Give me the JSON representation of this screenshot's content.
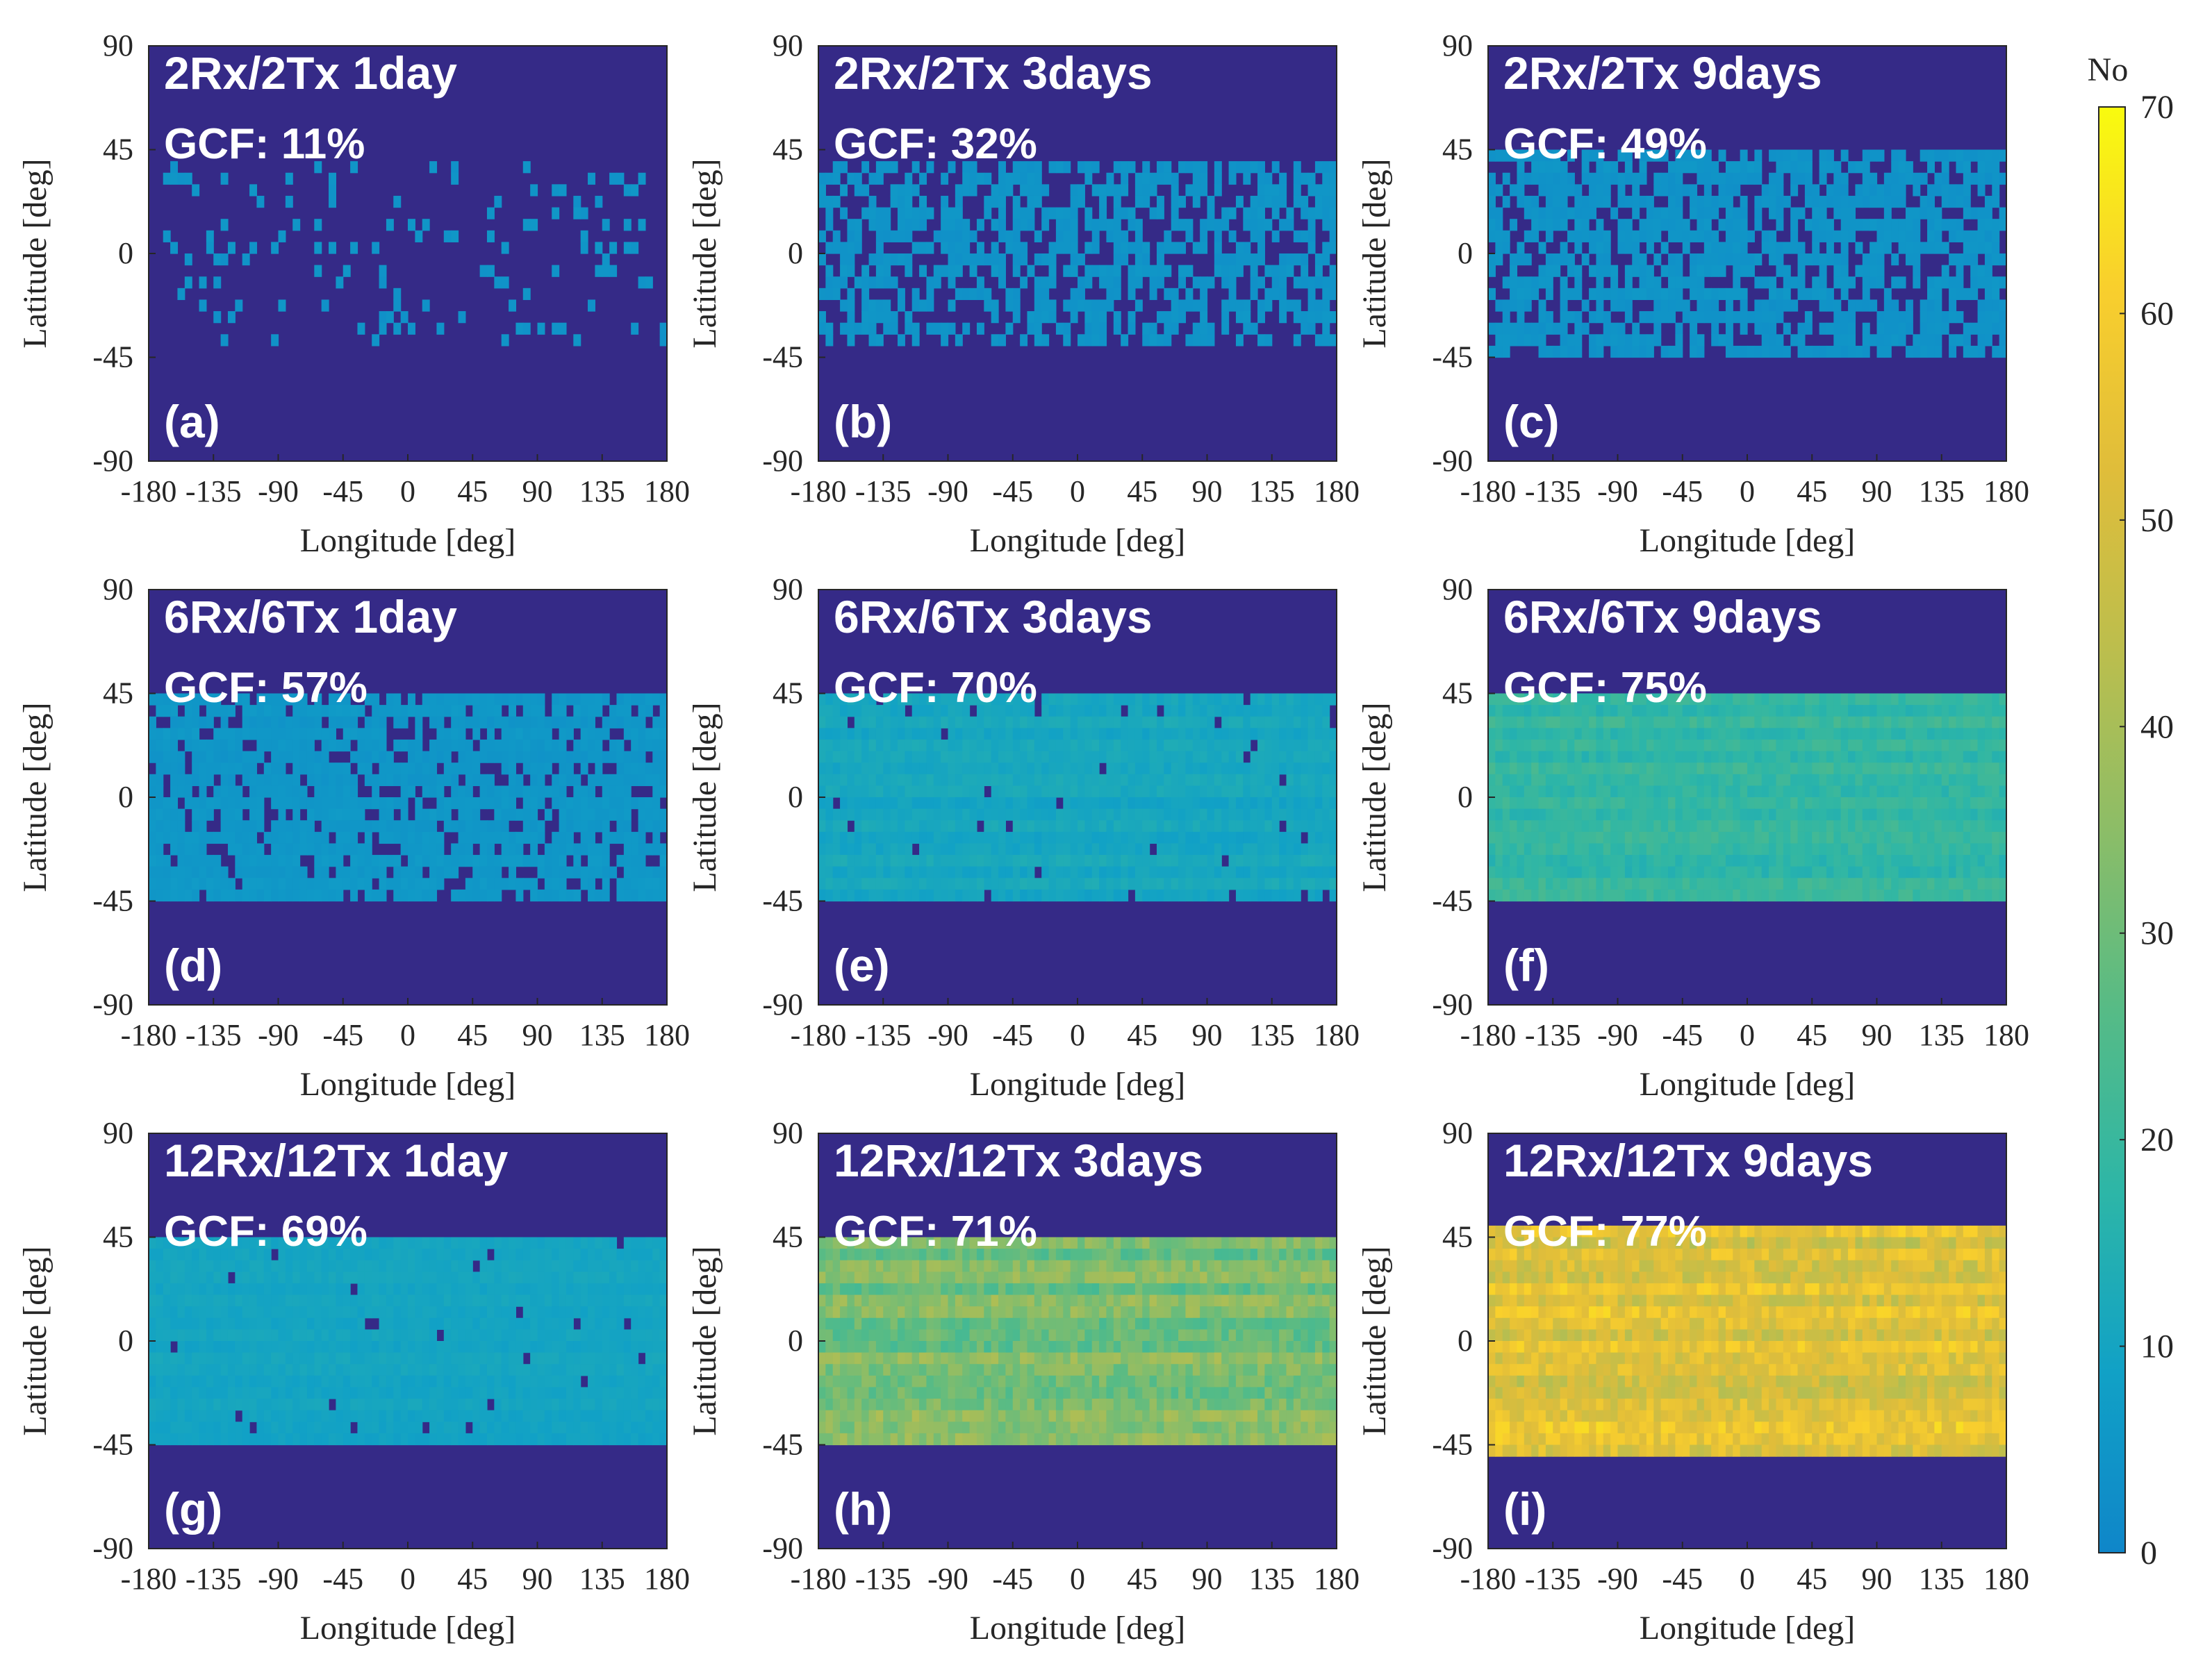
{
  "figure": {
    "colorbar": {
      "title": "No",
      "min": 0,
      "max": 70,
      "ticks": [
        0,
        10,
        20,
        30,
        40,
        50,
        60,
        70
      ],
      "tick_labels": [
        "0",
        "10",
        "20",
        "30",
        "40",
        "50",
        "60",
        "70"
      ],
      "no_coverage_color": "#352a87",
      "colormap": [
        "#0f86c9",
        "#11a1c6",
        "#2db6a7",
        "#56bb86",
        "#8cbd67",
        "#bcbe4d",
        "#e0bd3a",
        "#f9cf2d",
        "#f9fb0e"
      ]
    }
  },
  "chart_data": [
    {
      "panel": "a",
      "type": "heatmap",
      "title": "2Rx/2Tx 1day",
      "gcf_label": "GCF: 11%",
      "panel_label": "(a)",
      "xlabel": "Longitude [deg]",
      "ylabel": "Latitude [deg]",
      "xlim": [
        -180,
        180
      ],
      "ylim": [
        -90,
        90
      ],
      "xticks": [
        "-180",
        "-135",
        "-90",
        "-45",
        "0",
        "45",
        "90",
        "135",
        "180"
      ],
      "yticks": [
        "90",
        "45",
        "0",
        "-45",
        "-90"
      ],
      "lat_band": [
        -45,
        45
      ],
      "band_top": 40,
      "band_bottom": -42,
      "fill_fraction": 0.11,
      "level_min": 3,
      "level_max": 6,
      "gap_rows": []
    },
    {
      "panel": "b",
      "type": "heatmap",
      "title": "2Rx/2Tx 3days",
      "gcf_label": "GCF: 32%",
      "panel_label": "(b)",
      "xlabel": "Longitude [deg]",
      "ylabel": "Latitude [deg]",
      "xlim": [
        -180,
        180
      ],
      "ylim": [
        -90,
        90
      ],
      "xticks": [
        "-180",
        "-135",
        "-90",
        "-45",
        "0",
        "45",
        "90",
        "135",
        "180"
      ],
      "yticks": [
        "90",
        "45",
        "0",
        "-45",
        "-90"
      ],
      "lat_band": [
        -45,
        45
      ],
      "band_top": 44,
      "band_bottom": -44,
      "fill_fraction": 0.55,
      "level_min": 3,
      "level_max": 6,
      "gap_rows": []
    },
    {
      "panel": "c",
      "type": "heatmap",
      "title": "2Rx/2Tx 9days",
      "gcf_label": "GCF: 49%",
      "panel_label": "(c)",
      "xlabel": "Longitude [deg]",
      "ylabel": "Latitude [deg]",
      "xlim": [
        -180,
        180
      ],
      "ylim": [
        -90,
        90
      ],
      "xticks": [
        "-180",
        "-135",
        "-90",
        "-45",
        "0",
        "45",
        "90",
        "135",
        "180"
      ],
      "yticks": [
        "90",
        "45",
        "0",
        "-45",
        "-90"
      ],
      "lat_band": [
        -45,
        45
      ],
      "band_top": 47,
      "band_bottom": -47,
      "fill_fraction": 0.7,
      "level_min": 3,
      "level_max": 6,
      "gap_rows": []
    },
    {
      "panel": "d",
      "type": "heatmap",
      "title": "6Rx/6Tx 1day",
      "gcf_label": "GCF: 57%",
      "panel_label": "(d)",
      "xlabel": "Longitude [deg]",
      "ylabel": "Latitude [deg]",
      "xlim": [
        -180,
        180
      ],
      "ylim": [
        -90,
        90
      ],
      "xticks": [
        "-180",
        "-135",
        "-90",
        "-45",
        "0",
        "45",
        "90",
        "135",
        "180"
      ],
      "yticks": [
        "90",
        "45",
        "0",
        "-45",
        "-90"
      ],
      "lat_band": [
        -45,
        45
      ],
      "band_top": 45,
      "band_bottom": -45,
      "fill_fraction": 0.82,
      "level_min": 4,
      "level_max": 7,
      "gap_rows": []
    },
    {
      "panel": "e",
      "type": "heatmap",
      "title": "6Rx/6Tx 3days",
      "gcf_label": "GCF: 70%",
      "panel_label": "(e)",
      "xlabel": "Longitude [deg]",
      "ylabel": "Latitude [deg]",
      "xlim": [
        -180,
        180
      ],
      "ylim": [
        -90,
        90
      ],
      "xticks": [
        "-180",
        "-135",
        "-90",
        "-45",
        "0",
        "45",
        "90",
        "135",
        "180"
      ],
      "yticks": [
        "90",
        "45",
        "0",
        "-45",
        "-90"
      ],
      "lat_band": [
        -45,
        45
      ],
      "band_top": 45,
      "band_bottom": -45,
      "fill_fraction": 0.98,
      "level_min": 8,
      "level_max": 14,
      "gap_rows": []
    },
    {
      "panel": "f",
      "type": "heatmap",
      "title": "6Rx/6Tx 9days",
      "gcf_label": "GCF: 75%",
      "panel_label": "(f)",
      "xlabel": "Longitude [deg]",
      "ylabel": "Latitude [deg]",
      "xlim": [
        -180,
        180
      ],
      "ylim": [
        -90,
        90
      ],
      "xticks": [
        "-180",
        "-135",
        "-90",
        "-45",
        "0",
        "45",
        "90",
        "135",
        "180"
      ],
      "yticks": [
        "90",
        "45",
        "0",
        "-45",
        "-90"
      ],
      "lat_band": [
        -47,
        47
      ],
      "band_top": 47,
      "band_bottom": -47,
      "fill_fraction": 1.0,
      "level_min": 14,
      "level_max": 24,
      "gap_rows": []
    },
    {
      "panel": "g",
      "type": "heatmap",
      "title": "12Rx/12Tx 1day",
      "gcf_label": "GCF: 69%",
      "panel_label": "(g)",
      "xlabel": "Longitude [deg]",
      "ylabel": "Latitude [deg]",
      "xlim": [
        -180,
        180
      ],
      "ylim": [
        -90,
        90
      ],
      "xticks": [
        "-180",
        "-135",
        "-90",
        "-45",
        "0",
        "45",
        "90",
        "135",
        "180"
      ],
      "yticks": [
        "90",
        "45",
        "0",
        "-45",
        "-90"
      ],
      "lat_band": [
        -45,
        45
      ],
      "band_top": 47,
      "band_bottom": -45,
      "fill_fraction": 0.98,
      "level_min": 8,
      "level_max": 12,
      "gap_rows": []
    },
    {
      "panel": "h",
      "type": "heatmap",
      "title": "12Rx/12Tx 3days",
      "gcf_label": "GCF: 71%",
      "panel_label": "(h)",
      "xlabel": "Longitude [deg]",
      "ylabel": "Latitude [deg]",
      "xlim": [
        -180,
        180
      ],
      "ylim": [
        -90,
        90
      ],
      "xticks": [
        "-180",
        "-135",
        "-90",
        "-45",
        "0",
        "45",
        "90",
        "135",
        "180"
      ],
      "yticks": [
        "90",
        "45",
        "0",
        "-45",
        "-90"
      ],
      "lat_band": [
        -45,
        45
      ],
      "band_top": 47,
      "band_bottom": -45,
      "fill_fraction": 1.0,
      "level_min": 22,
      "level_max": 42,
      "gap_rows": []
    },
    {
      "panel": "i",
      "type": "heatmap",
      "title": "12Rx/12Tx 9days",
      "gcf_label": "GCF: 77%",
      "panel_label": "(i)",
      "xlabel": "Longitude [deg]",
      "ylabel": "Latitude [deg]",
      "xlim": [
        -180,
        180
      ],
      "ylim": [
        -90,
        90
      ],
      "xticks": [
        "-180",
        "-135",
        "-90",
        "-45",
        "0",
        "45",
        "90",
        "135",
        "180"
      ],
      "yticks": [
        "90",
        "45",
        "0",
        "-45",
        "-90"
      ],
      "lat_band": [
        -45,
        45
      ],
      "band_top": 52,
      "band_bottom": -50,
      "fill_fraction": 1.0,
      "level_min": 40,
      "level_max": 65,
      "gap_rows": []
    }
  ]
}
